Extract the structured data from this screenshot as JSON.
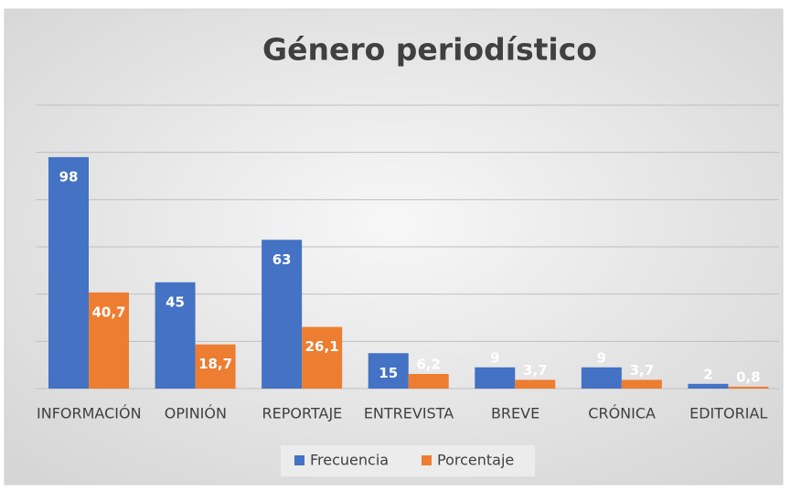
{
  "chart_data": {
    "type": "bar",
    "title": "Género periodístico",
    "categories": [
      "INFORMACIÓN",
      "OPINIÓN",
      "REPORTAJE",
      "ENTREVISTA",
      "BREVE",
      "CRÓNICA",
      "EDITORIAL"
    ],
    "series": [
      {
        "name": "Frecuencia",
        "color": "#4472c4",
        "values": [
          98,
          45,
          63,
          15,
          9,
          9,
          2
        ]
      },
      {
        "name": "Porcentaje",
        "color": "#ed7d31",
        "values": [
          40.7,
          18.7,
          26.1,
          6.2,
          3.7,
          3.7,
          0.8
        ],
        "value_labels": [
          "40,7",
          "18,7",
          "26,1",
          "6,2",
          "3,7",
          "3,7",
          "0,8"
        ]
      }
    ],
    "ylim": [
      0,
      120
    ],
    "yticks": [
      0,
      20,
      40,
      60,
      80,
      100,
      120
    ],
    "grid": true,
    "legend": "bottom"
  }
}
